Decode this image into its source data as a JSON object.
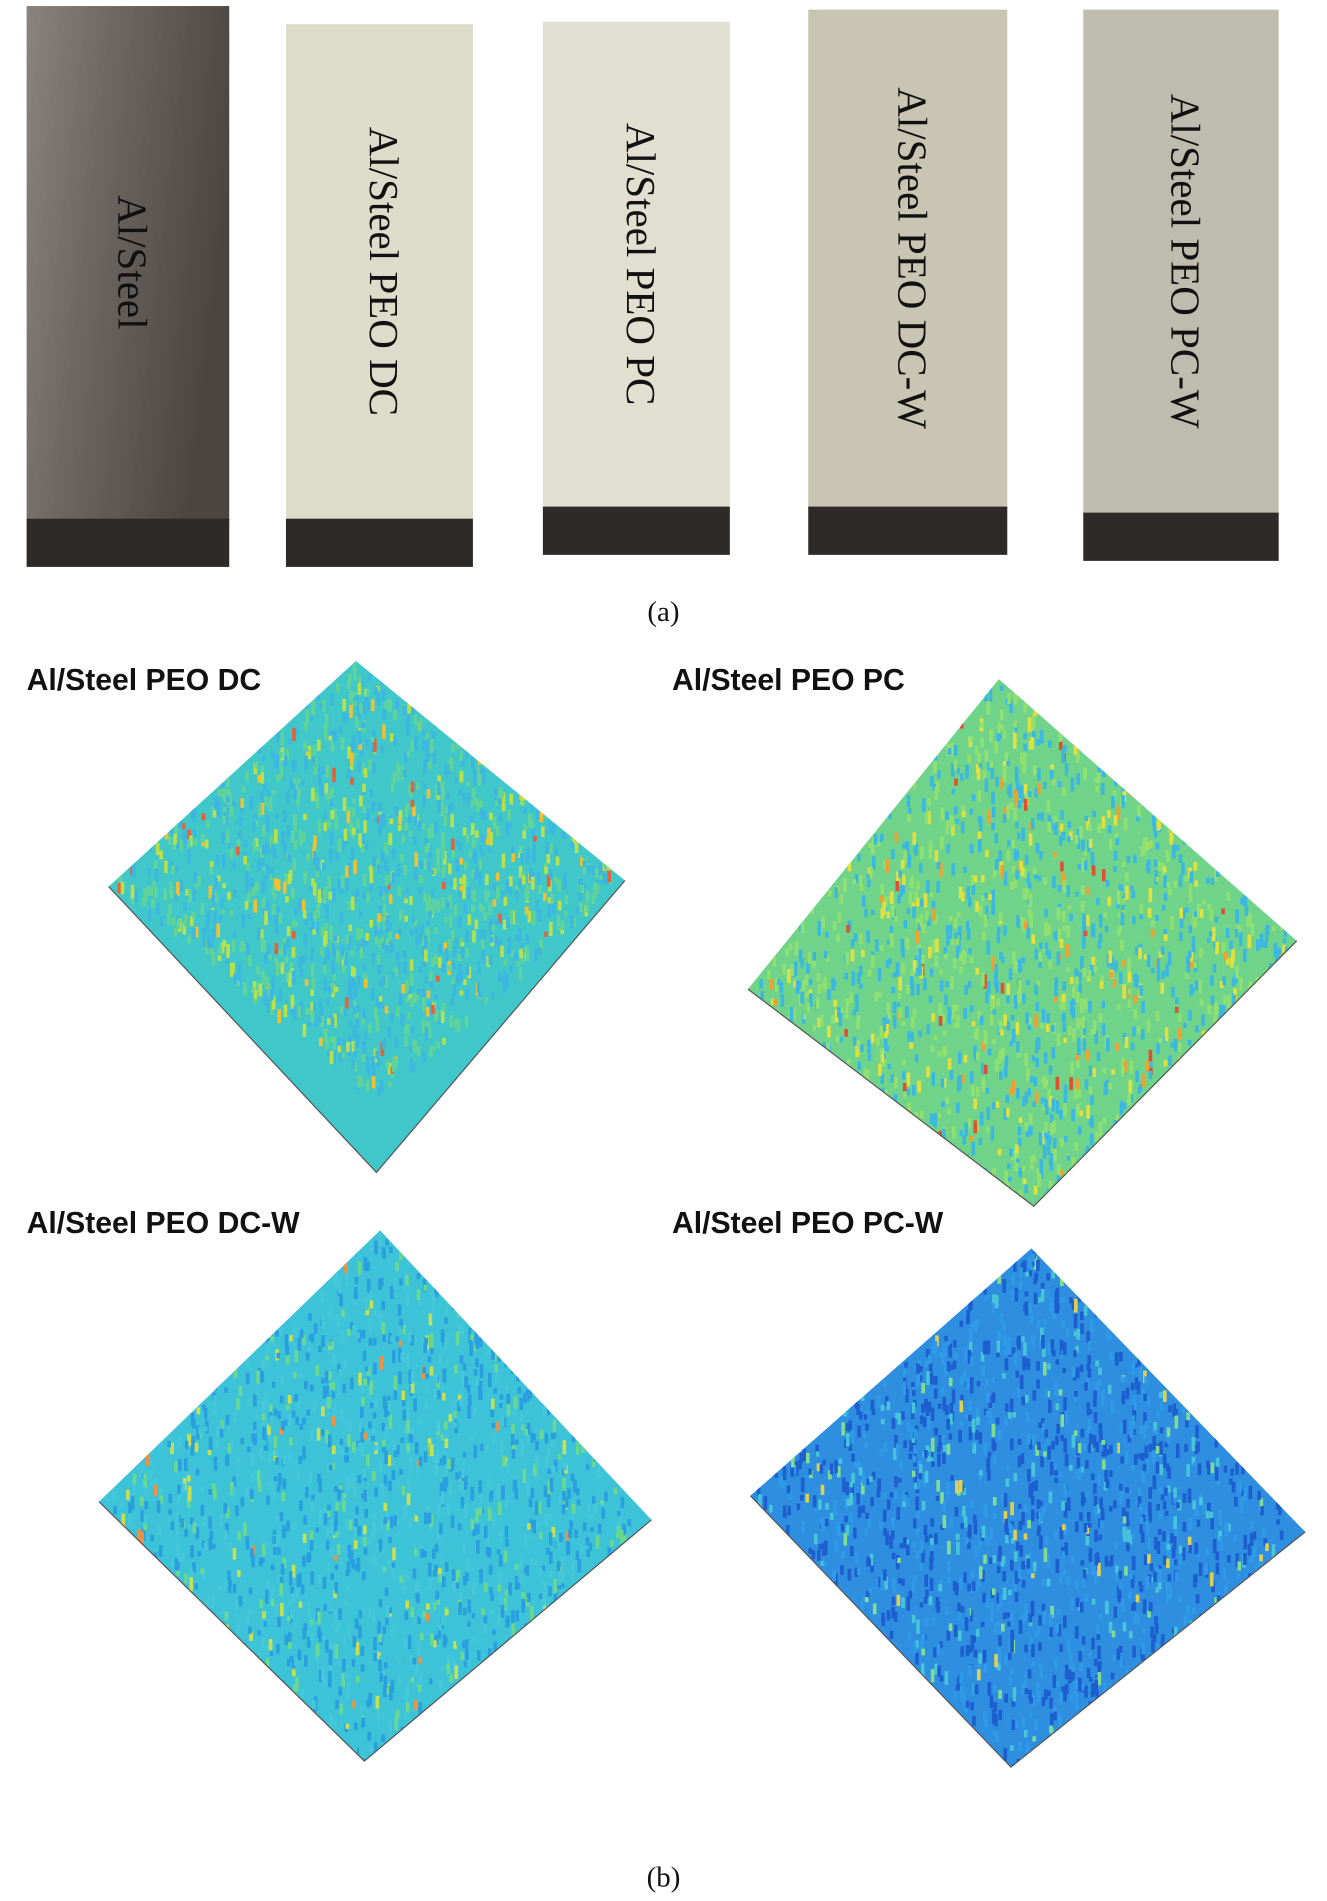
{
  "panel_a": {
    "caption": "(a)",
    "samples": [
      "Al/Steel",
      "Al/Steel PEO DC",
      "Al/Steel PEO PC",
      "Al/Steel PEO DC-W",
      "Al/Steel PEO PC-W"
    ]
  },
  "panel_b": {
    "caption": "(b)",
    "maps": [
      "Al/Steel PEO DC",
      "Al/Steel PEO PC",
      "Al/Steel PEO DC-W",
      "Al/Steel PEO PC-W"
    ]
  }
}
